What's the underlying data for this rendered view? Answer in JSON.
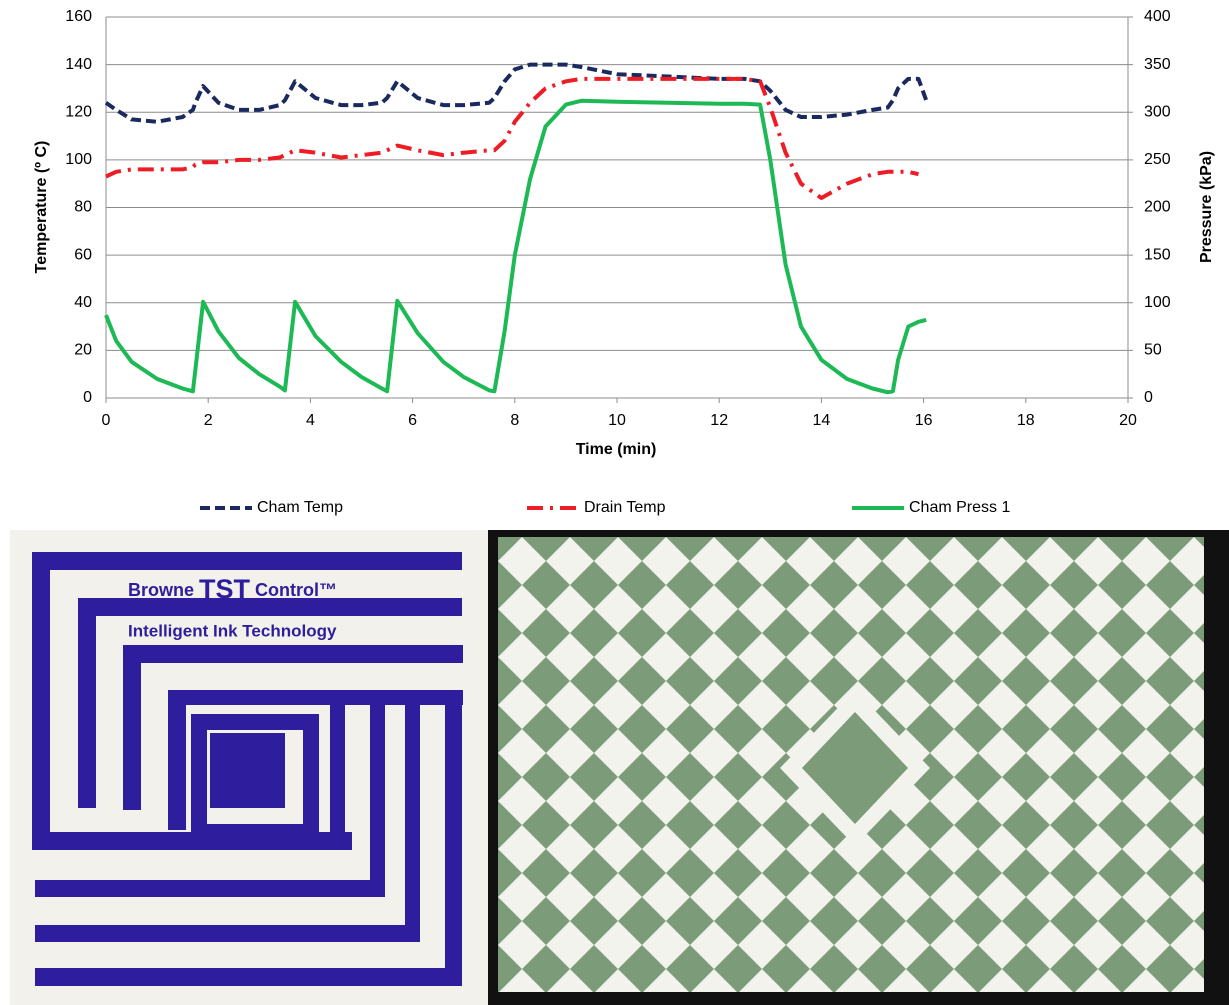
{
  "chart_data": {
    "type": "line",
    "x_label": "Time (min)",
    "y_label": "Temperature (º C)",
    "y2_label": "Pressure (kPa)",
    "x": [
      0,
      0.2,
      0.5,
      1,
      1.5,
      1.7,
      1.75,
      1.9,
      2.2,
      2.6,
      3,
      3.4,
      3.5,
      3.7,
      4.1,
      4.6,
      5,
      5.4,
      5.5,
      5.7,
      6.1,
      6.6,
      7,
      7.5,
      7.6,
      7.8,
      8,
      8.3,
      8.6,
      9,
      9.3,
      10,
      11,
      12,
      12.5,
      12.8,
      13,
      13.3,
      13.6,
      14,
      14.5,
      15,
      15.3,
      15.4,
      15.5,
      15.7,
      15.9,
      16.05
    ],
    "series": [
      {
        "name": "Cham Temp",
        "color": "#1b2a5e",
        "style": "dashed",
        "values": [
          124,
          121,
          117,
          116,
          118,
          121,
          124,
          131,
          124,
          121,
          121,
          123,
          125,
          133,
          126,
          123,
          123,
          124,
          126,
          133,
          126,
          123,
          123,
          124,
          126,
          133,
          138,
          140,
          140,
          140,
          139,
          136,
          135,
          134,
          134,
          133,
          129,
          121,
          118,
          118,
          119,
          121,
          122,
          125,
          130,
          134,
          134,
          125
        ]
      },
      {
        "name": "Drain Temp",
        "color": "#ee1c24",
        "style": "dashdot",
        "values": [
          93,
          95,
          96,
          96,
          96,
          97,
          98,
          99,
          99,
          100,
          100,
          101,
          102,
          104,
          103,
          101,
          102,
          103,
          104,
          106,
          104,
          102,
          103,
          104,
          104,
          108,
          116,
          124,
          130,
          133,
          134,
          134,
          134,
          134,
          134,
          133,
          122,
          103,
          90,
          84,
          90,
          94,
          95,
          95,
          95,
          95,
          94,
          null
        ]
      },
      {
        "name": "Cham Press 1",
        "color": "#1db954",
        "style": "solid",
        "axis": "y2",
        "values": [
          87,
          60,
          38,
          20,
          10,
          7,
          30,
          101,
          70,
          42,
          25,
          12,
          8,
          101,
          65,
          38,
          22,
          10,
          7,
          102,
          68,
          38,
          22,
          8,
          7,
          70,
          150,
          230,
          285,
          308,
          312,
          311,
          310,
          309,
          309,
          308,
          250,
          140,
          75,
          40,
          20,
          10,
          6,
          7,
          40,
          75,
          80,
          82
        ]
      }
    ],
    "xlim": [
      0,
      20
    ],
    "xticks": [
      0,
      2,
      4,
      6,
      8,
      10,
      12,
      14,
      16,
      18,
      20
    ],
    "ylim": [
      0,
      160
    ],
    "yticks": [
      0,
      20,
      40,
      60,
      80,
      100,
      120,
      140,
      160
    ],
    "y2lim": [
      0,
      400
    ],
    "y2ticks": [
      0,
      50,
      100,
      150,
      200,
      250,
      300,
      350,
      400
    ],
    "grid": true,
    "legend": "bottom"
  },
  "photo_text": {
    "brand": "Browne",
    "product": "TST",
    "control": "Control™",
    "tagline": "Intelligent Ink Technology"
  }
}
